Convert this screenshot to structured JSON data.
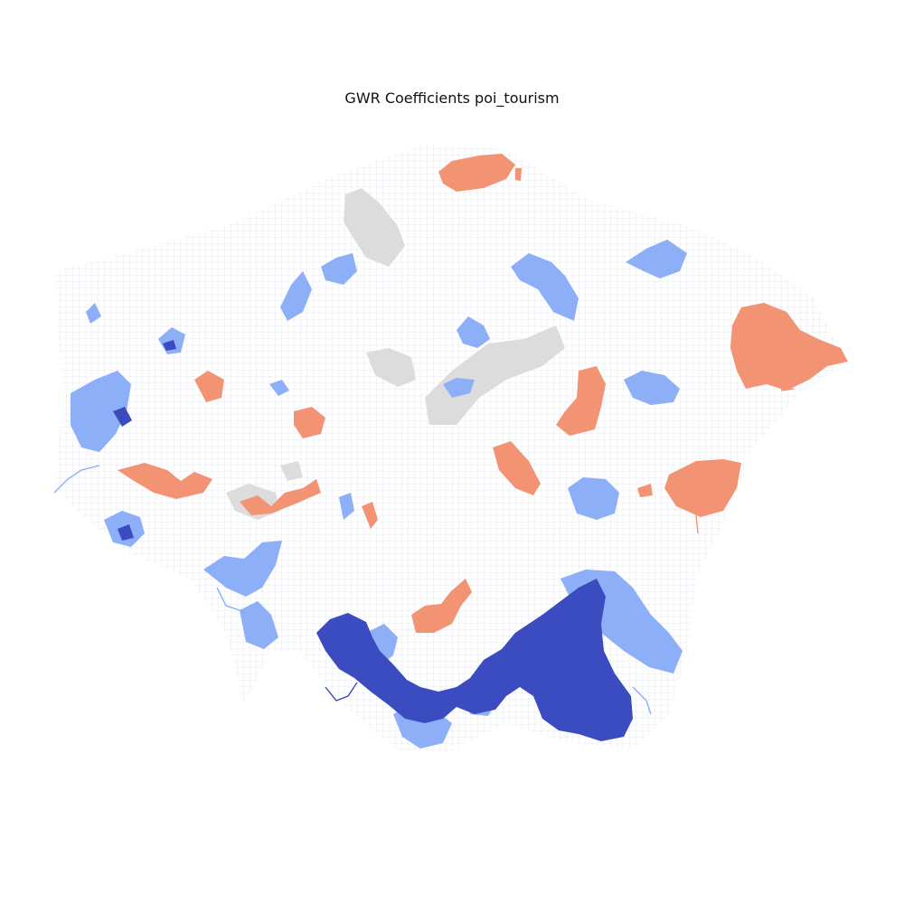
{
  "map": {
    "title": "GWR Coefficients poi_tourism",
    "classes": [
      {
        "key": "strong_negative",
        "color": "#3b4cc0"
      },
      {
        "key": "negative",
        "color": "#8caff8"
      },
      {
        "key": "neutral_gray",
        "color": "#dcdcdc"
      },
      {
        "key": "positive",
        "color": "#f29373"
      },
      {
        "key": "background_network",
        "color": "#eef0f6"
      }
    ]
  }
}
